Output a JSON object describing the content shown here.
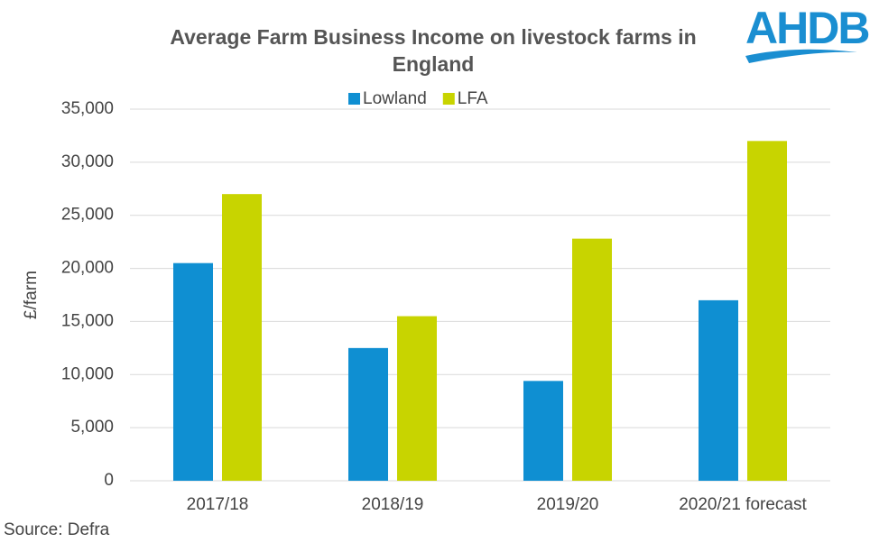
{
  "chart_data": {
    "type": "bar",
    "title": "Average Farm Business Income on livestock farms in England",
    "logo": "AHDB",
    "y_label": "£/farm",
    "source": "Source: Defra",
    "categories": [
      "2017/18",
      "2018/19",
      "2019/20",
      "2020/21 forecast"
    ],
    "series": [
      {
        "name": "Lowland",
        "color": "#0f8fd2",
        "values": [
          20500,
          12500,
          9400,
          17000
        ]
      },
      {
        "name": "LFA",
        "color": "#c8d400",
        "values": [
          27000,
          15500,
          22800,
          32000
        ]
      }
    ],
    "ylim": [
      0,
      35000
    ],
    "yticks": [
      0,
      {
        "value": 5000,
        "label": "5,000"
      },
      {
        "value": 10000,
        "label": "10,000"
      },
      {
        "value": 15000,
        "label": "15,000"
      },
      {
        "value": 20000,
        "label": "20,000"
      },
      {
        "value": 25000,
        "label": "25,000"
      },
      {
        "value": 30000,
        "label": "30,000"
      },
      {
        "value": 35000,
        "label": "35,000"
      }
    ],
    "grid": true,
    "legend": "top"
  }
}
